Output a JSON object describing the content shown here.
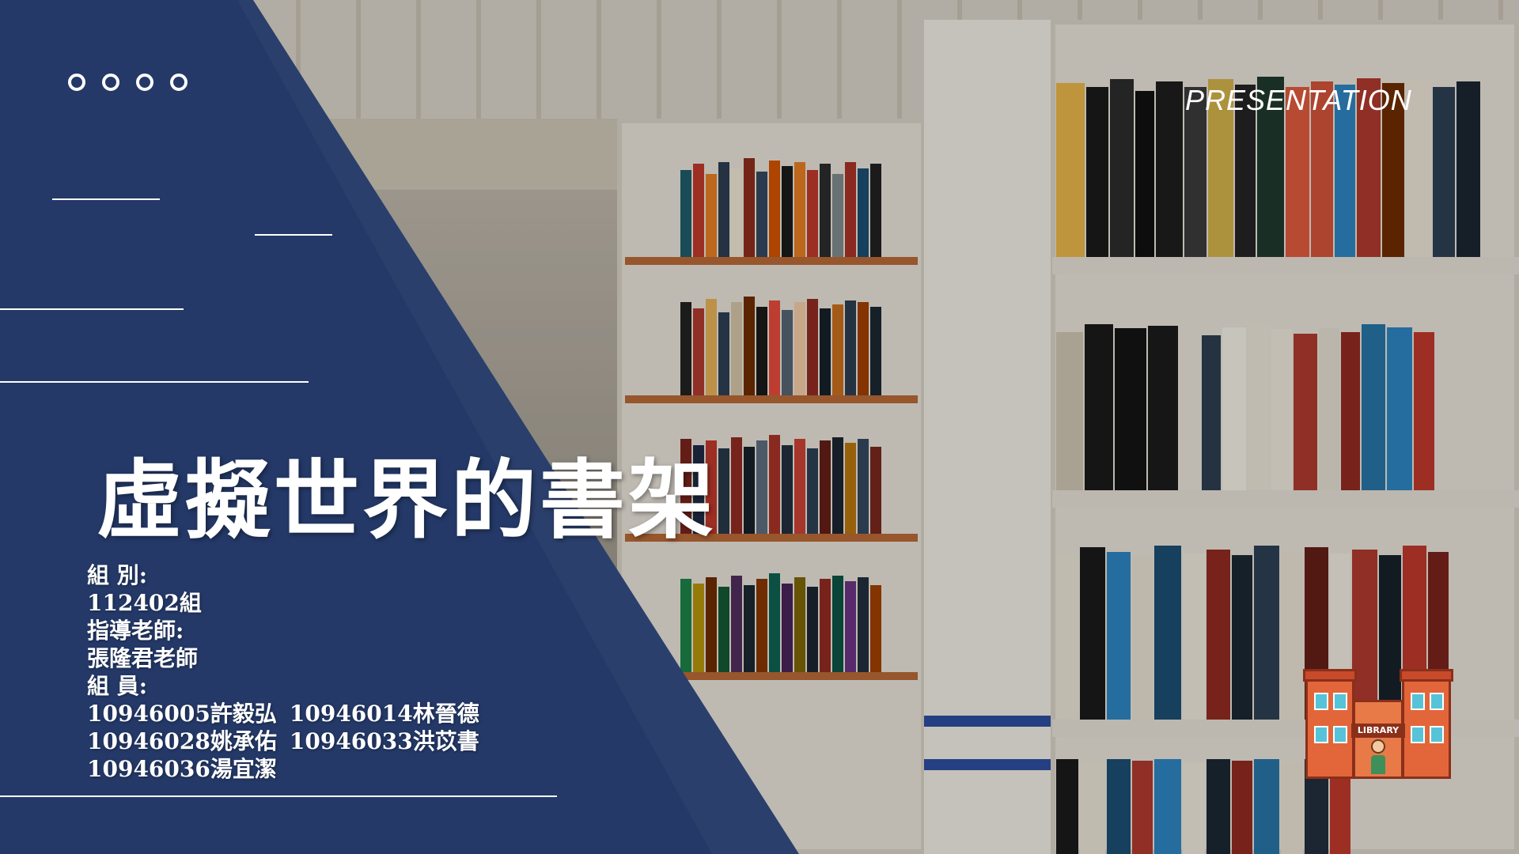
{
  "slide": {
    "decor_label": "PRESENTATION",
    "title": "虛擬世界的書架",
    "group_label": "組 別:",
    "group_value": "112402組",
    "advisor_label": "指導老師:",
    "advisor_value": "張隆君老師",
    "members_label": "組 員:",
    "members": [
      "10946005許毅弘",
      "10946014林晉德",
      "10946028姚承佑",
      "10946033洪苡書",
      "10946036湯宜潔"
    ],
    "badge_text": "LIBRARY"
  },
  "colors": {
    "navy": "#2a3f6b",
    "navy_dark": "#1f3566",
    "text": "#ffffff"
  },
  "icons": {
    "dots": "four-circle-outline",
    "badge": "library-building-icon"
  }
}
